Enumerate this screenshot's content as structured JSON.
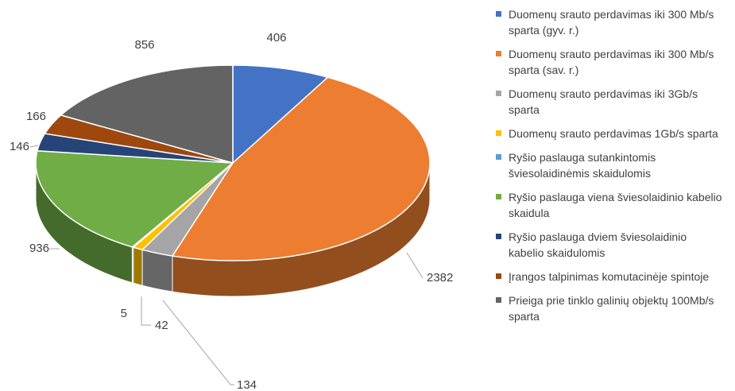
{
  "chart_data": {
    "type": "pie",
    "categories": [
      "Duomenų srauto perdavimas iki 300 Mb/s sparta (gyv. r.)",
      "Duomenų srauto perdavimas iki 300 Mb/s sparta (sav. r.)",
      "Duomenų srauto perdavimas iki 3Gb/s sparta",
      "Duomenų srauto perdavimas 1Gb/s sparta",
      "Ryšio paslauga sutankintomis šviesolaidinėmis skaidulomis",
      "Ryšio paslauga viena šviesolaidinio kabelio skaidula",
      "Ryšio paslauga dviem šviesolaidinio kabelio skaidulomis",
      "Įrangos talpinimas komutacinėje spintoje",
      "Prieiga prie tinklo galinių objektų 100Mb/s sparta"
    ],
    "values": [
      406,
      2382,
      134,
      42,
      5,
      936,
      146,
      166,
      856
    ],
    "colors": [
      "#4472c4",
      "#ed7d31",
      "#a5a5a5",
      "#ffc000",
      "#5b9bd5",
      "#70ad47",
      "#264478",
      "#9e480e",
      "#636363"
    ],
    "legend": "right"
  }
}
